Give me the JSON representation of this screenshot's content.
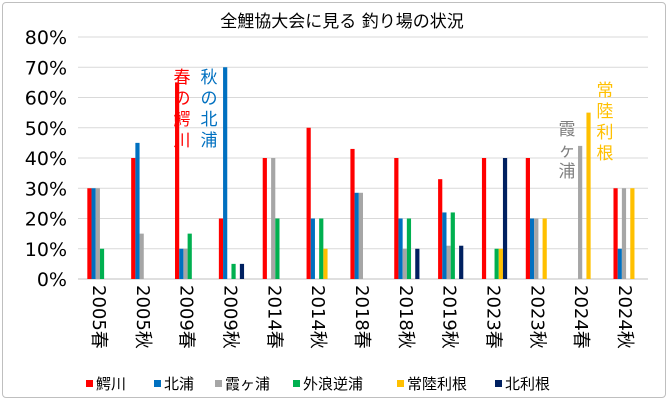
{
  "chart_data": {
    "type": "bar",
    "title": "全鯉協大会に見る 釣り場の状況",
    "xlabel": "",
    "ylabel": "",
    "ylim": [
      0,
      80
    ],
    "yticks": [
      "0%",
      "10%",
      "20%",
      "30%",
      "40%",
      "50%",
      "60%",
      "70%",
      "80%"
    ],
    "grid": true,
    "legend_position": "bottom",
    "categories": [
      "2005春",
      "2005秋",
      "2009春",
      "2009秋",
      "2014春",
      "2014秋",
      "2018春",
      "2018秋",
      "2019秋",
      "2023春",
      "2023秋",
      "2024春",
      "2024秋"
    ],
    "series": [
      {
        "name": "鰐川",
        "color": "#ff0000",
        "values": [
          30,
          40,
          65,
          20,
          40,
          50,
          43,
          40,
          33,
          40,
          40,
          0,
          30
        ]
      },
      {
        "name": "北浦",
        "color": "#0070c0",
        "values": [
          30,
          45,
          10,
          70,
          0,
          20,
          28.5,
          20,
          22,
          0,
          20,
          0,
          10
        ]
      },
      {
        "name": "霞ヶ浦",
        "color": "#a6a6a6",
        "values": [
          30,
          15,
          10,
          0,
          40,
          0,
          28.5,
          10,
          11,
          0,
          20,
          44,
          30
        ]
      },
      {
        "name": "外浪逆浦",
        "color": "#00b050",
        "values": [
          10,
          0,
          15,
          5,
          20,
          20,
          0,
          20,
          22,
          10,
          0,
          0,
          0
        ]
      },
      {
        "name": "常陸利根",
        "color": "#ffc000",
        "values": [
          0,
          0,
          0,
          0,
          0,
          10,
          0,
          0,
          0,
          10,
          20,
          55,
          30
        ]
      },
      {
        "name": "北利根",
        "color": "#002060",
        "values": [
          0,
          0,
          0,
          5,
          0,
          0,
          0,
          10,
          11,
          40,
          0,
          0,
          0
        ]
      }
    ],
    "annotations": [
      {
        "text": "春の鰐川",
        "color": "#ff0000"
      },
      {
        "text": "秋の北浦",
        "color": "#0070c0"
      },
      {
        "text": "霞ヶ浦",
        "color": "#7f7f7f"
      },
      {
        "text": "常陸利根",
        "color": "#ffc000"
      }
    ]
  }
}
